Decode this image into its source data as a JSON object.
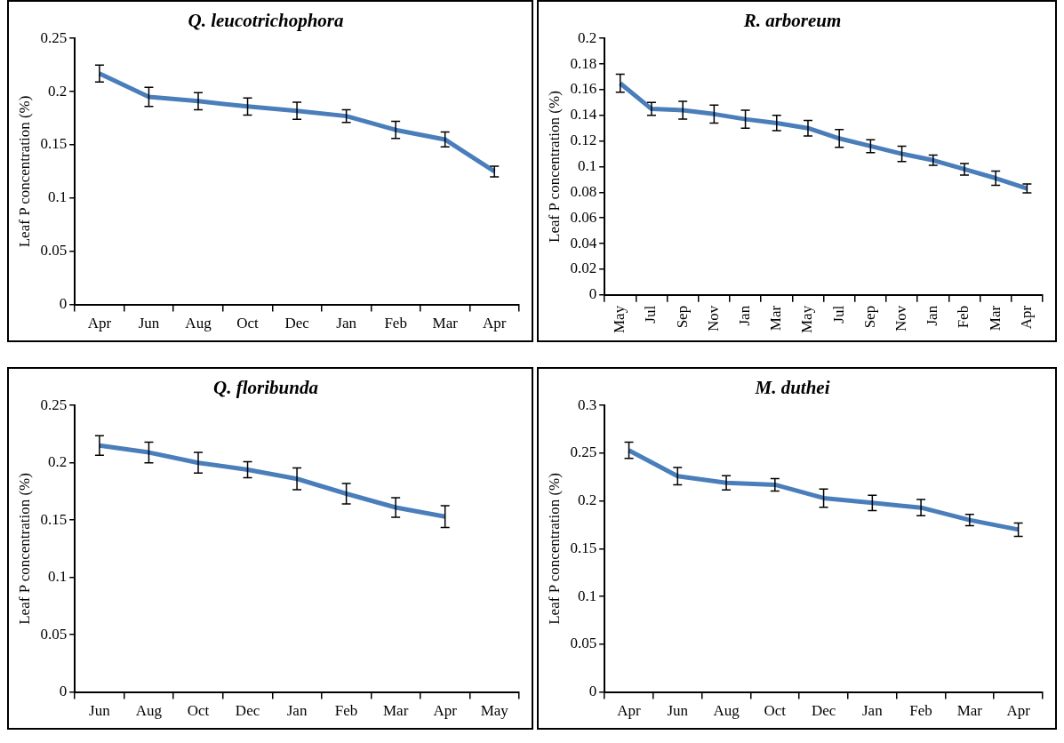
{
  "chart_data": [
    {
      "type": "line",
      "title": "Q. leucotrichophora",
      "ylabel": "Leaf P concentration (%)",
      "categories": [
        "Apr",
        "Jun",
        "Aug",
        "Oct",
        "Dec",
        "Jan",
        "Feb",
        "Mar",
        "Apr"
      ],
      "series": [
        {
          "color": "#4a7ebb",
          "values": [
            0.217,
            0.195,
            0.191,
            0.186,
            0.182,
            0.177,
            0.164,
            0.155,
            0.125
          ],
          "errors": [
            0.008,
            0.009,
            0.008,
            0.008,
            0.008,
            0.006,
            0.008,
            0.007,
            0.005
          ]
        }
      ],
      "ylim": [
        0,
        0.25
      ],
      "yticks": [
        0,
        0.05,
        0.1,
        0.15,
        0.2,
        0.25
      ],
      "grid": false,
      "legend": false,
      "marker": "none"
    },
    {
      "type": "line",
      "title": "R. arboreum",
      "ylabel": "Leaf P concentration (%)",
      "categories": [
        "May",
        "Jul",
        "Sep",
        "Nov",
        "Jan",
        "Mar",
        "May",
        "Jul",
        "Sep",
        "Nov",
        "Jan",
        "Feb",
        "Mar",
        "Apr"
      ],
      "series": [
        {
          "color": "#4a7ebb",
          "values": [
            0.165,
            0.145,
            0.144,
            0.141,
            0.137,
            0.134,
            0.13,
            0.122,
            0.116,
            0.11,
            0.105,
            0.098,
            0.091,
            0.083
          ],
          "errors": [
            0.007,
            0.005,
            0.007,
            0.007,
            0.007,
            0.006,
            0.006,
            0.007,
            0.005,
            0.006,
            0.004,
            0.0045,
            0.0055,
            0.0035
          ]
        }
      ],
      "ylim": [
        0,
        0.2
      ],
      "yticks": [
        0,
        0.02,
        0.04,
        0.06,
        0.08,
        0.1,
        0.12,
        0.14,
        0.16,
        0.18,
        0.2
      ],
      "grid": false,
      "legend": false,
      "marker": "none"
    },
    {
      "type": "line",
      "title": "Q. floribunda",
      "ylabel": "Leaf P concentration (%)",
      "categories": [
        "Jun",
        "Aug",
        "Oct",
        "Dec",
        "Jan",
        "Feb",
        "Mar",
        "Apr",
        "May"
      ],
      "series": [
        {
          "color": "#4a7ebb",
          "values": [
            0.215,
            0.209,
            0.2,
            0.194,
            0.186,
            0.173,
            0.161,
            0.153,
            null
          ],
          "errors": [
            0.0085,
            0.009,
            0.009,
            0.007,
            0.0095,
            0.009,
            0.0085,
            0.0095,
            null
          ]
        }
      ],
      "ylim": [
        0,
        0.25
      ],
      "yticks": [
        0,
        0.05,
        0.1,
        0.15,
        0.2,
        0.25
      ],
      "grid": false,
      "legend": false,
      "marker": "none"
    },
    {
      "type": "line",
      "title": "M. duthei",
      "ylabel": "Leaf P concentration (%)",
      "categories": [
        "Apr",
        "Jun",
        "Aug",
        "Oct",
        "Dec",
        "Jan",
        "Feb",
        "Mar",
        "Apr"
      ],
      "series": [
        {
          "color": "#4a7ebb",
          "values": [
            0.253,
            0.226,
            0.219,
            0.217,
            0.203,
            0.198,
            0.193,
            0.18,
            0.17
          ],
          "errors": [
            0.0085,
            0.009,
            0.0075,
            0.0065,
            0.0095,
            0.008,
            0.0085,
            0.006,
            0.007
          ]
        }
      ],
      "ylim": [
        0,
        0.3
      ],
      "yticks": [
        0,
        0.05,
        0.1,
        0.15,
        0.2,
        0.25,
        0.3
      ],
      "grid": false,
      "legend": false,
      "marker": "none"
    }
  ]
}
